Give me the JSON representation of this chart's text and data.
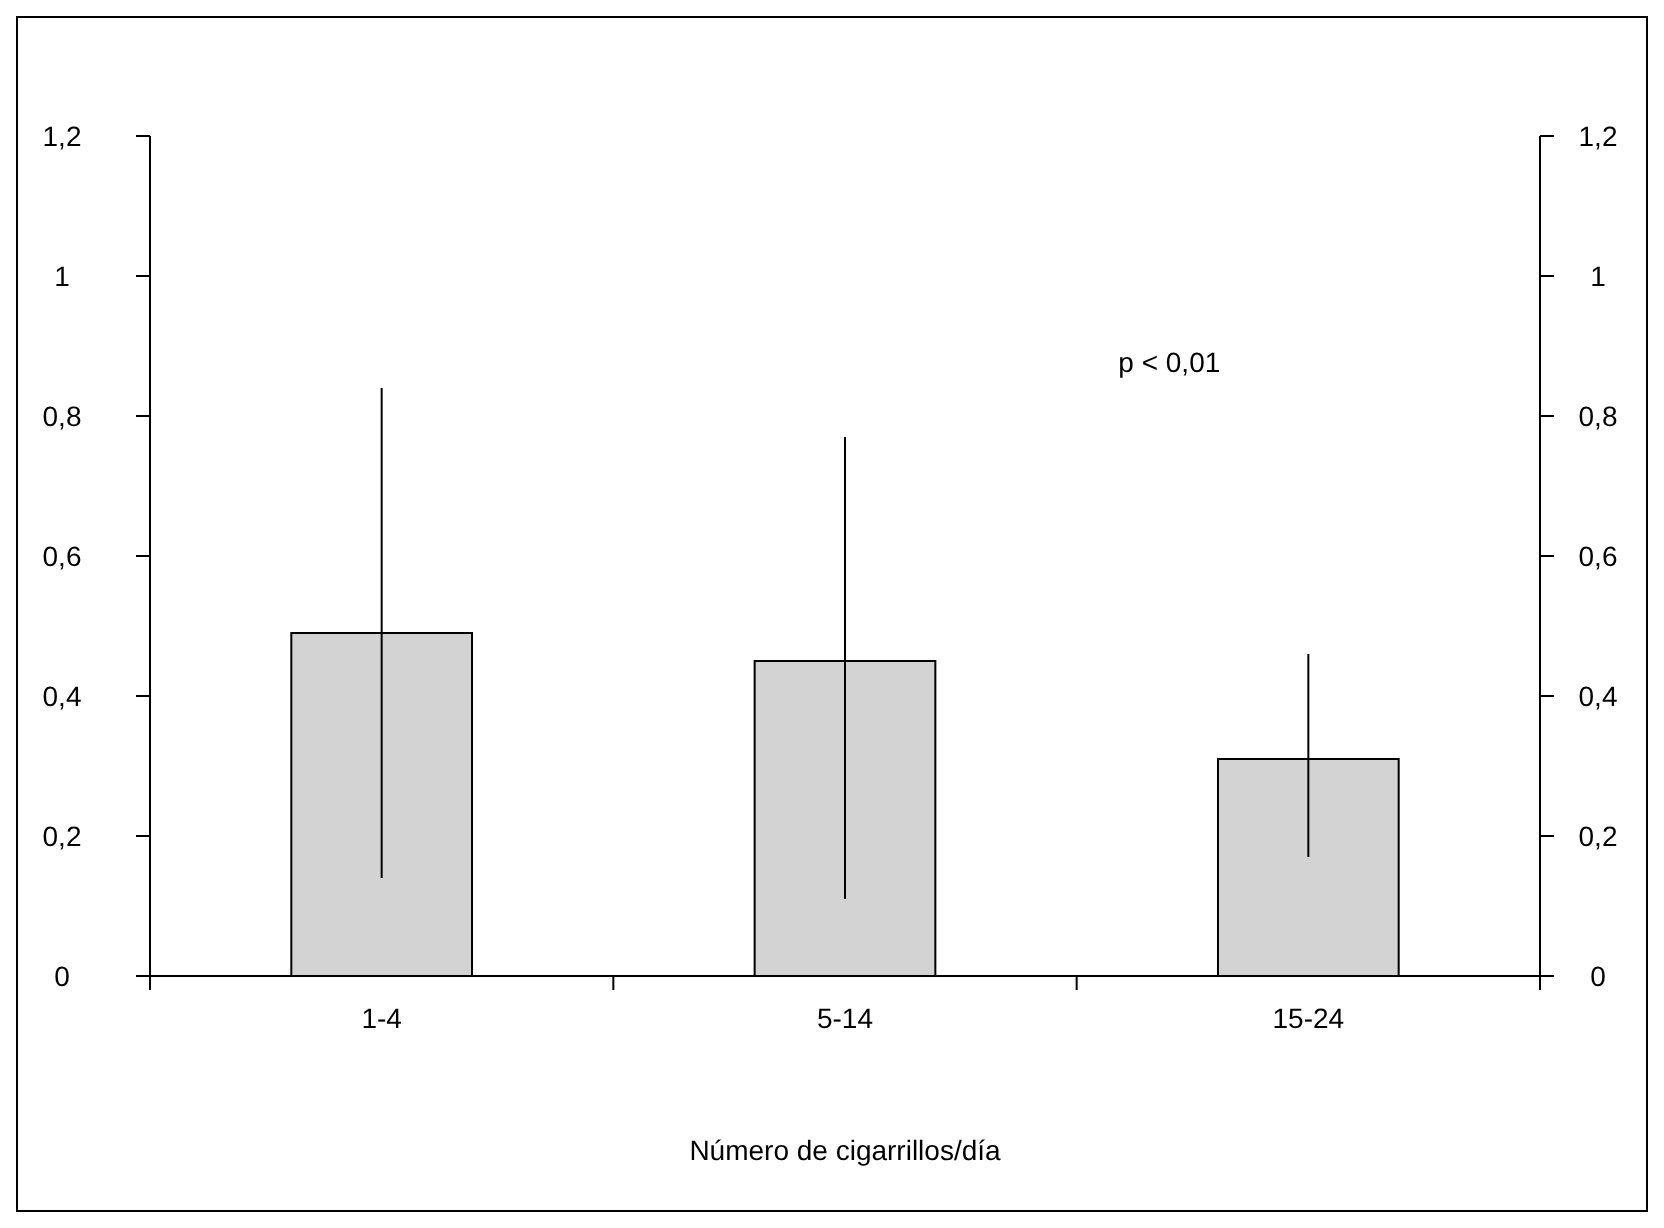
{
  "chart_data": {
    "type": "bar",
    "categories": [
      "1-4",
      "5-14",
      "15-24"
    ],
    "values": [
      0.49,
      0.45,
      0.31
    ],
    "color": "#d3d3d3",
    "errors": [
      [
        0.14,
        0.84
      ],
      [
        0.11,
        0.77
      ],
      [
        0.17,
        0.46
      ]
    ],
    "ylim": [
      0,
      1.2
    ],
    "yticks": [
      0,
      {
        "value": 0.2,
        "label": "0,2"
      },
      {
        "value": 0.4,
        "label": "0,4"
      },
      {
        "value": 0.6,
        "label": "0,6"
      },
      {
        "value": 0.8,
        "label": "0,8"
      },
      1,
      {
        "value": 1.2,
        "label": "1,2"
      }
    ],
    "y2lim": [
      0,
      1.2
    ],
    "y2ticks": [
      0,
      {
        "value": 0.2,
        "label": "0,2"
      },
      {
        "value": 0.4,
        "label": "0,4"
      },
      {
        "value": 0.6,
        "label": "0,6"
      },
      {
        "value": 0.8,
        "label": "0,8"
      },
      1,
      {
        "value": 1.2,
        "label": "1,2"
      }
    ],
    "xlabel": "Número de cigarrillos/día",
    "annotations": [
      "p < 0,01"
    ],
    "grid": false
  }
}
